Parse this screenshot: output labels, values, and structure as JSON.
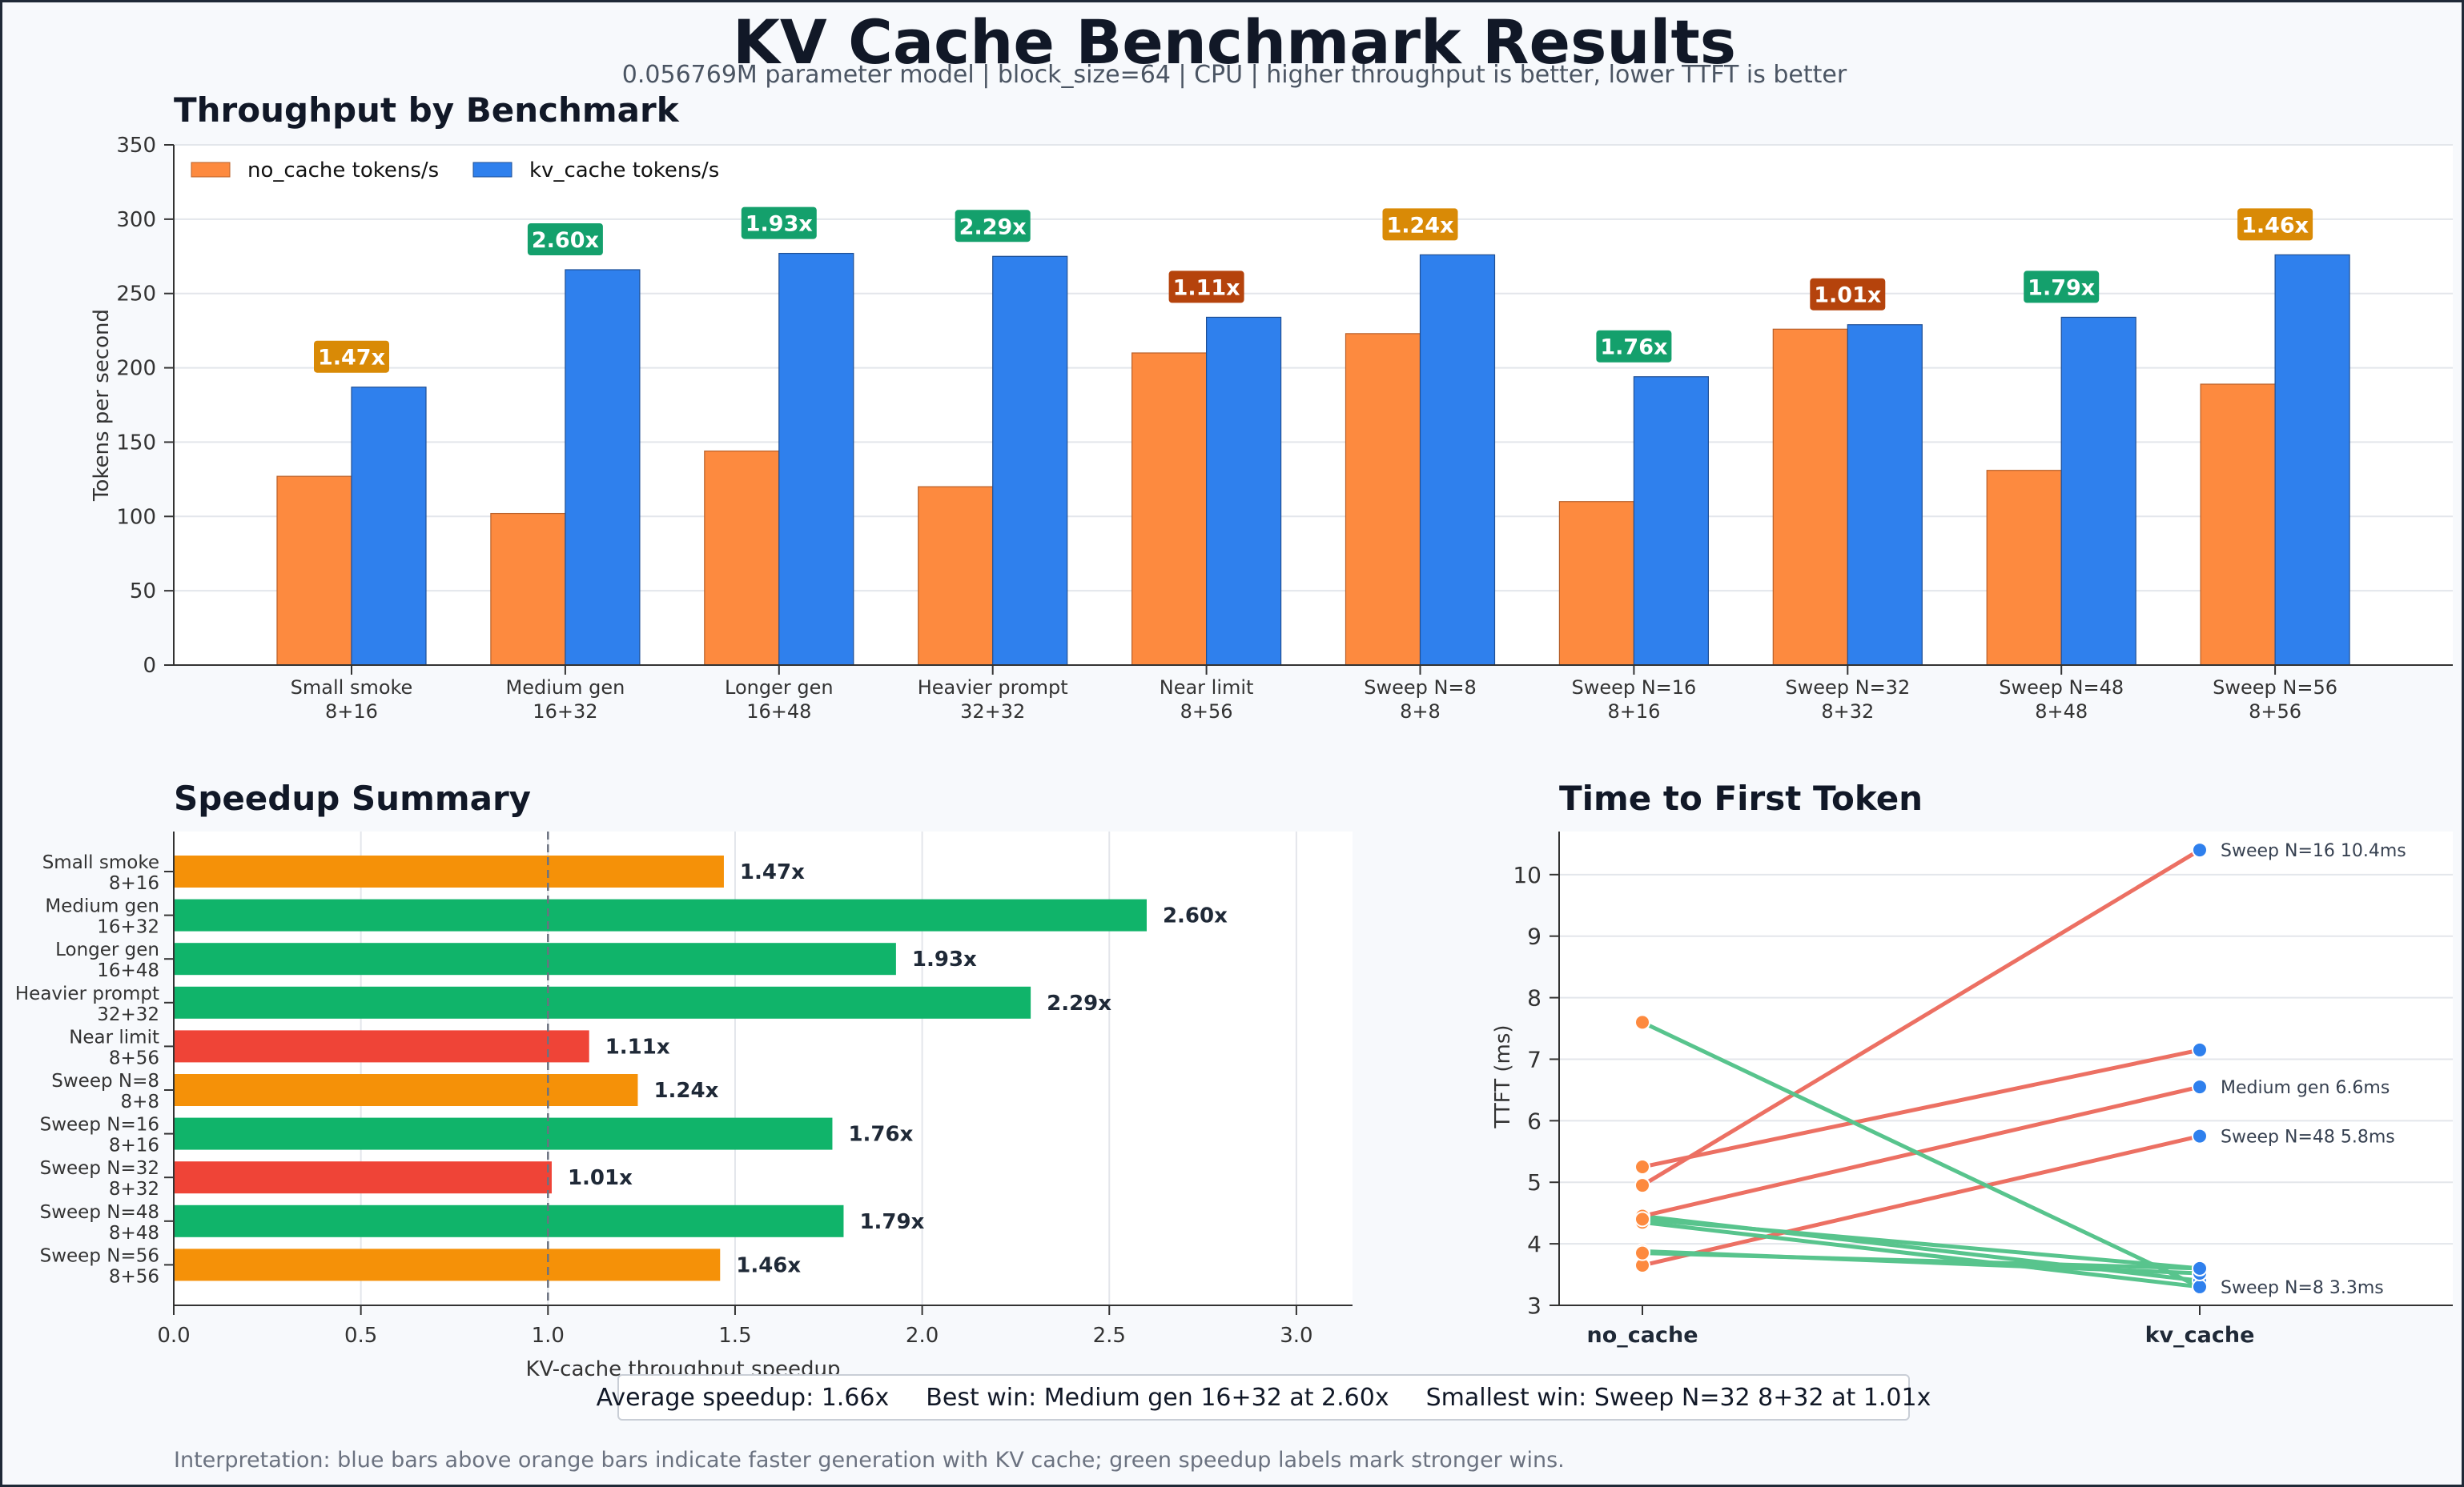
{
  "title": "KV Cache Benchmark Results",
  "subtitle": "0.056769M parameter model | block_size=64 | CPU | higher throughput is better, lower TTFT is better",
  "summary": {
    "average": "Average speedup: 1.66x",
    "best": "Best win: Medium gen 16+32 at 2.60x",
    "smallest": "Smallest win: Sweep N=32 8+32 at 1.01x"
  },
  "interpretation": "Interpretation: blue bars above orange bars indicate faster generation with KV cache; green speedup labels mark stronger wins.",
  "colors": {
    "no_cache": "#fd8a3f",
    "kv_cache": "#2f80ed",
    "strong": "#10b46a",
    "moderate": "#f59108",
    "weak": "#ef4437",
    "label_strong": "#14a06c",
    "label_moderate": "#d98a06",
    "label_weak": "#b5430c",
    "ttft_up": "#ec7063",
    "ttft_down": "#58c48d"
  },
  "chart_data": [
    {
      "type": "bar",
      "title": "Throughput by Benchmark",
      "ylabel": "Tokens per second",
      "xlabel": "",
      "ylim": [
        0,
        350
      ],
      "yticks": [
        0,
        50,
        100,
        150,
        200,
        250,
        300,
        350
      ],
      "grid": true,
      "legend_position": "top-left",
      "categories": [
        [
          "Small smoke",
          "8+16"
        ],
        [
          "Medium gen",
          "16+32"
        ],
        [
          "Longer gen",
          "16+48"
        ],
        [
          "Heavier prompt",
          "32+32"
        ],
        [
          "Near limit",
          "8+56"
        ],
        [
          "Sweep N=8",
          "8+8"
        ],
        [
          "Sweep N=16",
          "8+16"
        ],
        [
          "Sweep N=32",
          "8+32"
        ],
        [
          "Sweep N=48",
          "8+48"
        ],
        [
          "Sweep N=56",
          "8+56"
        ]
      ],
      "series": [
        {
          "name": "no_cache tokens/s",
          "values": [
            127,
            102,
            144,
            120,
            210,
            223,
            110,
            226,
            131,
            189
          ]
        },
        {
          "name": "kv_cache tokens/s",
          "values": [
            187,
            266,
            277,
            275,
            234,
            276,
            194,
            229,
            234,
            276
          ]
        }
      ],
      "annotations": [
        "1.47x",
        "2.60x",
        "1.93x",
        "2.29x",
        "1.11x",
        "1.24x",
        "1.76x",
        "1.01x",
        "1.79x",
        "1.46x"
      ],
      "annotation_tier": [
        "moderate",
        "strong",
        "strong",
        "strong",
        "weak",
        "moderate",
        "strong",
        "weak",
        "strong",
        "moderate"
      ]
    },
    {
      "type": "bar",
      "orientation": "horizontal",
      "title": "Speedup Summary",
      "xlabel": "KV-cache throughput speedup",
      "xlim": [
        0,
        3.15
      ],
      "xticks": [
        "0.0",
        "0.5",
        "1.0",
        "1.5",
        "2.0",
        "2.5",
        "3.0"
      ],
      "reference_line": 1.0,
      "grid": true,
      "categories": [
        [
          "Small smoke",
          "8+16"
        ],
        [
          "Medium gen",
          "16+32"
        ],
        [
          "Longer gen",
          "16+48"
        ],
        [
          "Heavier prompt",
          "32+32"
        ],
        [
          "Near limit",
          "8+56"
        ],
        [
          "Sweep N=8",
          "8+8"
        ],
        [
          "Sweep N=16",
          "8+16"
        ],
        [
          "Sweep N=32",
          "8+32"
        ],
        [
          "Sweep N=48",
          "8+48"
        ],
        [
          "Sweep N=56",
          "8+56"
        ]
      ],
      "values": [
        1.47,
        2.6,
        1.93,
        2.29,
        1.11,
        1.24,
        1.76,
        1.01,
        1.79,
        1.46
      ],
      "labels": [
        "1.47x",
        "2.60x",
        "1.93x",
        "2.29x",
        "1.11x",
        "1.24x",
        "1.76x",
        "1.01x",
        "1.79x",
        "1.46x"
      ],
      "tier": [
        "moderate",
        "strong",
        "strong",
        "strong",
        "weak",
        "moderate",
        "strong",
        "weak",
        "strong",
        "moderate"
      ]
    },
    {
      "type": "line",
      "title": "Time to First Token",
      "ylabel": "TTFT (ms)",
      "ylim": [
        3,
        10.7
      ],
      "yticks": [
        3,
        4,
        5,
        6,
        7,
        8,
        9,
        10
      ],
      "grid": true,
      "x": [
        "no_cache",
        "kv_cache"
      ],
      "series": [
        {
          "values": [
            4.45,
            3.4
          ]
        },
        {
          "values": [
            4.95,
            10.4
          ]
        },
        {
          "values": [
            5.25,
            7.15
          ]
        },
        {
          "values": [
            4.45,
            6.55
          ]
        },
        {
          "values": [
            3.65,
            5.75
          ]
        },
        {
          "values": [
            4.35,
            3.3
          ]
        },
        {
          "values": [
            7.6,
            3.3
          ]
        },
        {
          "values": [
            4.4,
            3.6
          ]
        },
        {
          "values": [
            3.88,
            3.52
          ]
        },
        {
          "values": [
            3.85,
            3.6
          ]
        }
      ],
      "point_labels": [
        {
          "series": 1,
          "text": "Sweep N=16 10.4ms"
        },
        {
          "series": 3,
          "text": "Medium gen 6.6ms"
        },
        {
          "series": 4,
          "text": "Sweep N=48 5.8ms"
        },
        {
          "series": 5,
          "text": "Sweep N=8 3.3ms"
        }
      ]
    }
  ]
}
